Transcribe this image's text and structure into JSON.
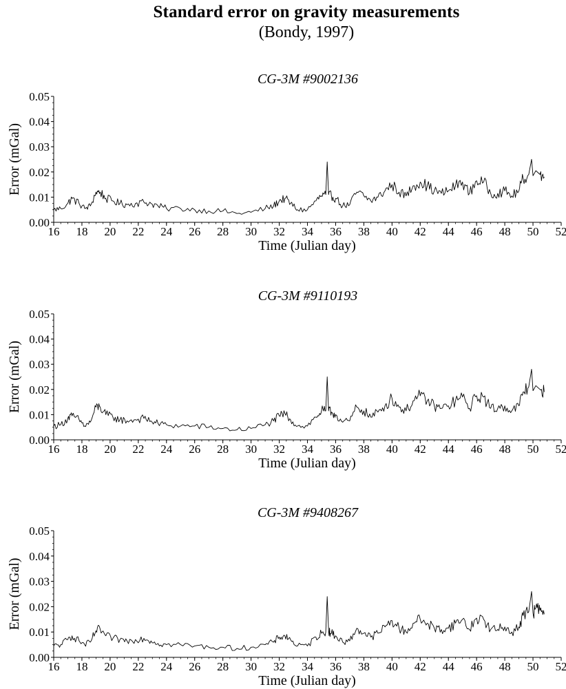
{
  "title": "Standard error on gravity measurements",
  "subtitle": "(Bondy, 1997)",
  "chart_data": [
    {
      "type": "line",
      "title": "CG-3M #9002136",
      "xlabel": "Time (Julian day)",
      "ylabel": "Error (mGal)",
      "xlim": [
        16,
        52
      ],
      "ylim": [
        0,
        0.05
      ],
      "xticks": [
        "16",
        "18",
        "20",
        "22",
        "24",
        "26",
        "28",
        "30",
        "32",
        "34",
        "36",
        "38",
        "40",
        "42",
        "44",
        "46",
        "48",
        "50",
        "52"
      ],
      "yticks": [
        "0.00",
        "0.01",
        "0.02",
        "0.03",
        "0.04",
        "0.05"
      ],
      "grid": false,
      "series": [
        {
          "color": "#000000",
          "x": [
            16.0,
            16.5,
            17.0,
            17.3,
            17.8,
            18.2,
            18.6,
            19.0,
            19.3,
            19.7,
            20.2,
            20.7,
            21.2,
            21.8,
            22.4,
            22.9,
            23.4,
            24.0,
            25.0,
            26.0,
            27.0,
            28.0,
            29.0,
            30.0,
            31.0,
            31.6,
            32.0,
            32.4,
            32.8,
            33.3,
            34.0,
            34.6,
            35.0,
            35.3,
            35.4,
            35.5,
            35.7,
            36.0,
            36.5,
            37.0,
            37.5,
            38.0,
            38.5,
            39.0,
            39.5,
            40.0,
            40.5,
            41.0,
            41.5,
            42.0,
            42.5,
            43.0,
            43.5,
            44.0,
            44.5,
            45.0,
            45.5,
            46.0,
            46.5,
            47.0,
            47.5,
            48.0,
            48.5,
            49.0,
            49.3,
            49.7,
            49.9,
            50.0,
            50.2,
            50.5,
            50.8
          ],
          "y": [
            0.005,
            0.0055,
            0.0075,
            0.0095,
            0.0075,
            0.0055,
            0.0065,
            0.012,
            0.012,
            0.0095,
            0.0085,
            0.0075,
            0.007,
            0.0075,
            0.008,
            0.0075,
            0.0065,
            0.0055,
            0.0055,
            0.005,
            0.0045,
            0.0045,
            0.0035,
            0.004,
            0.0055,
            0.0065,
            0.0085,
            0.0095,
            0.0075,
            0.005,
            0.005,
            0.0085,
            0.0105,
            0.011,
            0.024,
            0.011,
            0.0105,
            0.0095,
            0.0065,
            0.007,
            0.012,
            0.0105,
            0.0085,
            0.01,
            0.0125,
            0.015,
            0.012,
            0.0105,
            0.0145,
            0.016,
            0.0145,
            0.0125,
            0.0115,
            0.0125,
            0.0145,
            0.016,
            0.0115,
            0.0165,
            0.016,
            0.0115,
            0.0115,
            0.0125,
            0.0105,
            0.0125,
            0.0175,
            0.019,
            0.025,
            0.0185,
            0.0205,
            0.019,
            0.018
          ]
        }
      ]
    },
    {
      "type": "line",
      "title": "CG-3M #9110193",
      "xlabel": "Time (Julian day)",
      "ylabel": "Error (mGal)",
      "xlim": [
        16,
        52
      ],
      "ylim": [
        0,
        0.05
      ],
      "xticks": [
        "16",
        "18",
        "20",
        "22",
        "24",
        "26",
        "28",
        "30",
        "32",
        "34",
        "36",
        "38",
        "40",
        "42",
        "44",
        "46",
        "48",
        "50",
        "52"
      ],
      "yticks": [
        "0.00",
        "0.01",
        "0.02",
        "0.03",
        "0.04",
        "0.05"
      ],
      "grid": false,
      "series": [
        {
          "color": "#000000",
          "x": [
            16.0,
            16.5,
            17.0,
            17.3,
            17.8,
            18.2,
            18.6,
            19.0,
            19.3,
            19.7,
            20.2,
            20.7,
            21.2,
            21.8,
            22.4,
            22.9,
            23.4,
            24.0,
            25.0,
            26.0,
            27.0,
            28.0,
            29.0,
            30.0,
            31.0,
            31.6,
            32.0,
            32.4,
            32.8,
            33.3,
            34.0,
            34.6,
            35.0,
            35.3,
            35.4,
            35.5,
            35.7,
            36.0,
            36.5,
            37.0,
            37.5,
            38.0,
            38.5,
            39.0,
            39.5,
            40.0,
            40.5,
            41.0,
            41.5,
            42.0,
            42.5,
            43.0,
            43.5,
            44.0,
            44.5,
            45.0,
            45.5,
            46.0,
            46.5,
            47.0,
            47.5,
            48.0,
            48.5,
            49.0,
            49.3,
            49.7,
            49.9,
            50.0,
            50.2,
            50.5,
            50.8
          ],
          "y": [
            0.0055,
            0.006,
            0.0085,
            0.0095,
            0.008,
            0.0055,
            0.007,
            0.013,
            0.013,
            0.01,
            0.009,
            0.008,
            0.0075,
            0.008,
            0.0085,
            0.0075,
            0.0065,
            0.006,
            0.0055,
            0.0055,
            0.005,
            0.0045,
            0.004,
            0.0045,
            0.006,
            0.0075,
            0.0095,
            0.0105,
            0.008,
            0.0055,
            0.0055,
            0.009,
            0.0115,
            0.0115,
            0.025,
            0.0115,
            0.011,
            0.01,
            0.007,
            0.0075,
            0.013,
            0.0115,
            0.009,
            0.011,
            0.0135,
            0.0165,
            0.013,
            0.0115,
            0.0155,
            0.0175,
            0.0155,
            0.0135,
            0.0125,
            0.0135,
            0.0155,
            0.017,
            0.0125,
            0.0175,
            0.017,
            0.0125,
            0.0125,
            0.0135,
            0.0115,
            0.0135,
            0.019,
            0.021,
            0.028,
            0.0195,
            0.0215,
            0.02,
            0.019
          ]
        }
      ]
    },
    {
      "type": "line",
      "title": "CG-3M #9408267",
      "xlabel": "Time (Julian day)",
      "ylabel": "Error (mGal)",
      "xlim": [
        16,
        52
      ],
      "ylim": [
        0,
        0.05
      ],
      "xticks": [
        "16",
        "18",
        "20",
        "22",
        "24",
        "26",
        "28",
        "30",
        "32",
        "34",
        "36",
        "38",
        "40",
        "42",
        "44",
        "46",
        "48",
        "50",
        "52"
      ],
      "yticks": [
        "0.00",
        "0.01",
        "0.02",
        "0.03",
        "0.04",
        "0.05"
      ],
      "grid": false,
      "series": [
        {
          "color": "#000000",
          "x": [
            16.0,
            16.5,
            17.0,
            17.3,
            17.8,
            18.2,
            18.6,
            19.0,
            19.3,
            19.7,
            20.2,
            20.7,
            21.2,
            21.8,
            22.4,
            22.9,
            23.4,
            24.0,
            25.0,
            26.0,
            27.0,
            28.0,
            29.0,
            30.0,
            31.0,
            31.6,
            32.0,
            32.4,
            32.8,
            33.3,
            34.0,
            34.6,
            35.0,
            35.3,
            35.4,
            35.5,
            35.7,
            36.0,
            36.5,
            37.0,
            37.5,
            38.0,
            38.5,
            39.0,
            39.5,
            40.0,
            40.5,
            41.0,
            41.5,
            42.0,
            42.5,
            43.0,
            43.5,
            44.0,
            44.5,
            45.0,
            45.5,
            46.0,
            46.5,
            47.0,
            47.5,
            48.0,
            48.5,
            49.0,
            49.3,
            49.7,
            49.9,
            50.0,
            50.2,
            50.5,
            50.8
          ],
          "y": [
            0.0045,
            0.005,
            0.007,
            0.0085,
            0.0065,
            0.005,
            0.006,
            0.0105,
            0.011,
            0.0085,
            0.0075,
            0.007,
            0.0065,
            0.007,
            0.0075,
            0.0065,
            0.0055,
            0.005,
            0.005,
            0.0045,
            0.004,
            0.004,
            0.0035,
            0.004,
            0.005,
            0.006,
            0.008,
            0.0085,
            0.007,
            0.0045,
            0.0045,
            0.008,
            0.0095,
            0.01,
            0.024,
            0.0105,
            0.0095,
            0.0085,
            0.006,
            0.0065,
            0.0115,
            0.0095,
            0.008,
            0.0095,
            0.012,
            0.0145,
            0.0115,
            0.01,
            0.0135,
            0.015,
            0.0135,
            0.0115,
            0.011,
            0.0115,
            0.0135,
            0.015,
            0.011,
            0.0155,
            0.015,
            0.011,
            0.011,
            0.012,
            0.01,
            0.012,
            0.0165,
            0.018,
            0.026,
            0.0175,
            0.0195,
            0.0185,
            0.017
          ]
        }
      ]
    }
  ]
}
